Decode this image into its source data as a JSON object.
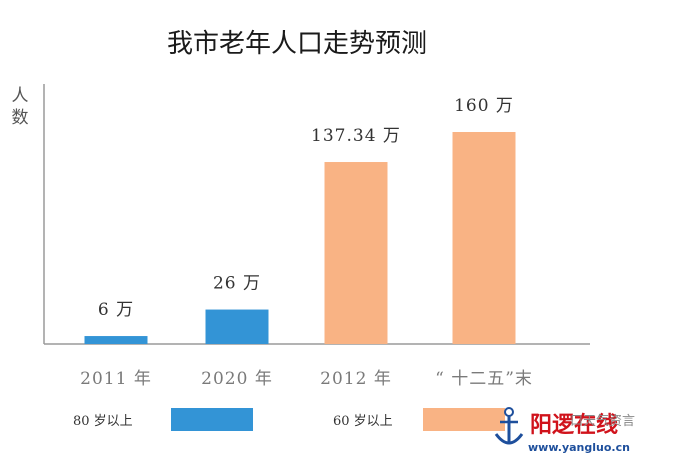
{
  "chart_data": {
    "type": "bar",
    "title": "我市老年人口走势预测",
    "ylabel": [
      "人",
      "数"
    ],
    "unit": "万",
    "categories": [
      "2011 年",
      "2020 年",
      "2012 年",
      "“ 十二五”末"
    ],
    "values": [
      6,
      26,
      137.34,
      160
    ],
    "value_labels": [
      "6 万",
      "26 万",
      "137.34 万",
      "160 万"
    ],
    "series": [
      {
        "name": "80 岁以上",
        "color": "#3394d6",
        "indices": [
          0,
          1
        ]
      },
      {
        "name": "60 岁以上",
        "color": "#f9b384",
        "indices": [
          2,
          3
        ]
      }
    ],
    "ylim": [
      0,
      200
    ],
    "grid": false,
    "legend": "bottom"
  },
  "watermark": {
    "site_name": "阳逻在线",
    "url": "www.yangluo.cn",
    "overlap_text": "口天气资言"
  }
}
